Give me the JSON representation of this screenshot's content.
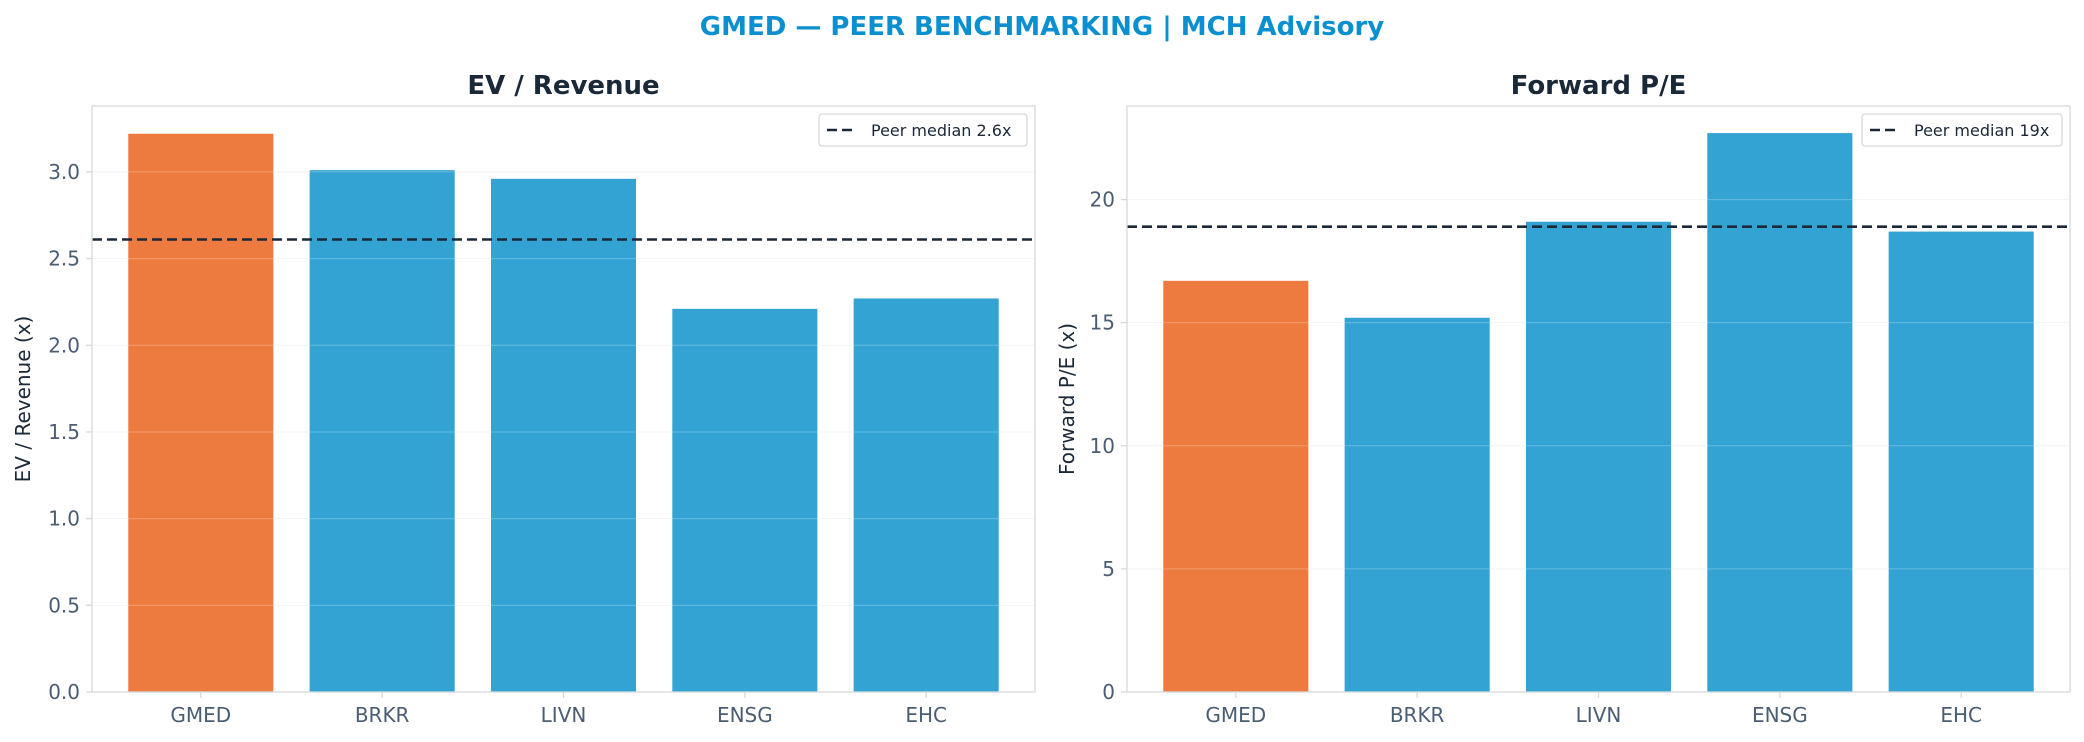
{
  "suptitle": "GMED — PEER BENCHMARKING | MCH Advisory",
  "colors": {
    "title": "#0b8fcf",
    "highlight": "#ed7b3f",
    "peer": "#33a3d4",
    "median_line": "#1b2838",
    "grid": "#eef1f4",
    "spine": "#d5d9de"
  },
  "chart_data": [
    {
      "type": "bar",
      "title": "EV / Revenue",
      "ylabel": "EV / Revenue (x)",
      "categories": [
        "GMED",
        "BRKR",
        "LIVN",
        "ENSG",
        "EHC"
      ],
      "values": [
        3.22,
        3.01,
        2.96,
        2.21,
        2.27
      ],
      "highlight": "GMED",
      "ylim": [
        0,
        3.38
      ],
      "yticks": [
        0.0,
        0.5,
        1.0,
        1.5,
        2.0,
        2.5,
        3.0
      ],
      "ytick_decimals": 1,
      "median": 2.61,
      "legend": "Peer median 2.6x",
      "legend_loc": "top-right",
      "grid": true
    },
    {
      "type": "bar",
      "title": "Forward P/E",
      "ylabel": "Forward P/E (x)",
      "categories": [
        "GMED",
        "BRKR",
        "LIVN",
        "ENSG",
        "EHC"
      ],
      "values": [
        16.7,
        15.2,
        19.1,
        22.7,
        18.7
      ],
      "highlight": "GMED",
      "ylim": [
        0,
        23.8
      ],
      "yticks": [
        0,
        5,
        10,
        15,
        20
      ],
      "ytick_decimals": 0,
      "median": 18.9,
      "legend": "Peer median 19x",
      "legend_loc": "top-right",
      "grid": true
    }
  ]
}
